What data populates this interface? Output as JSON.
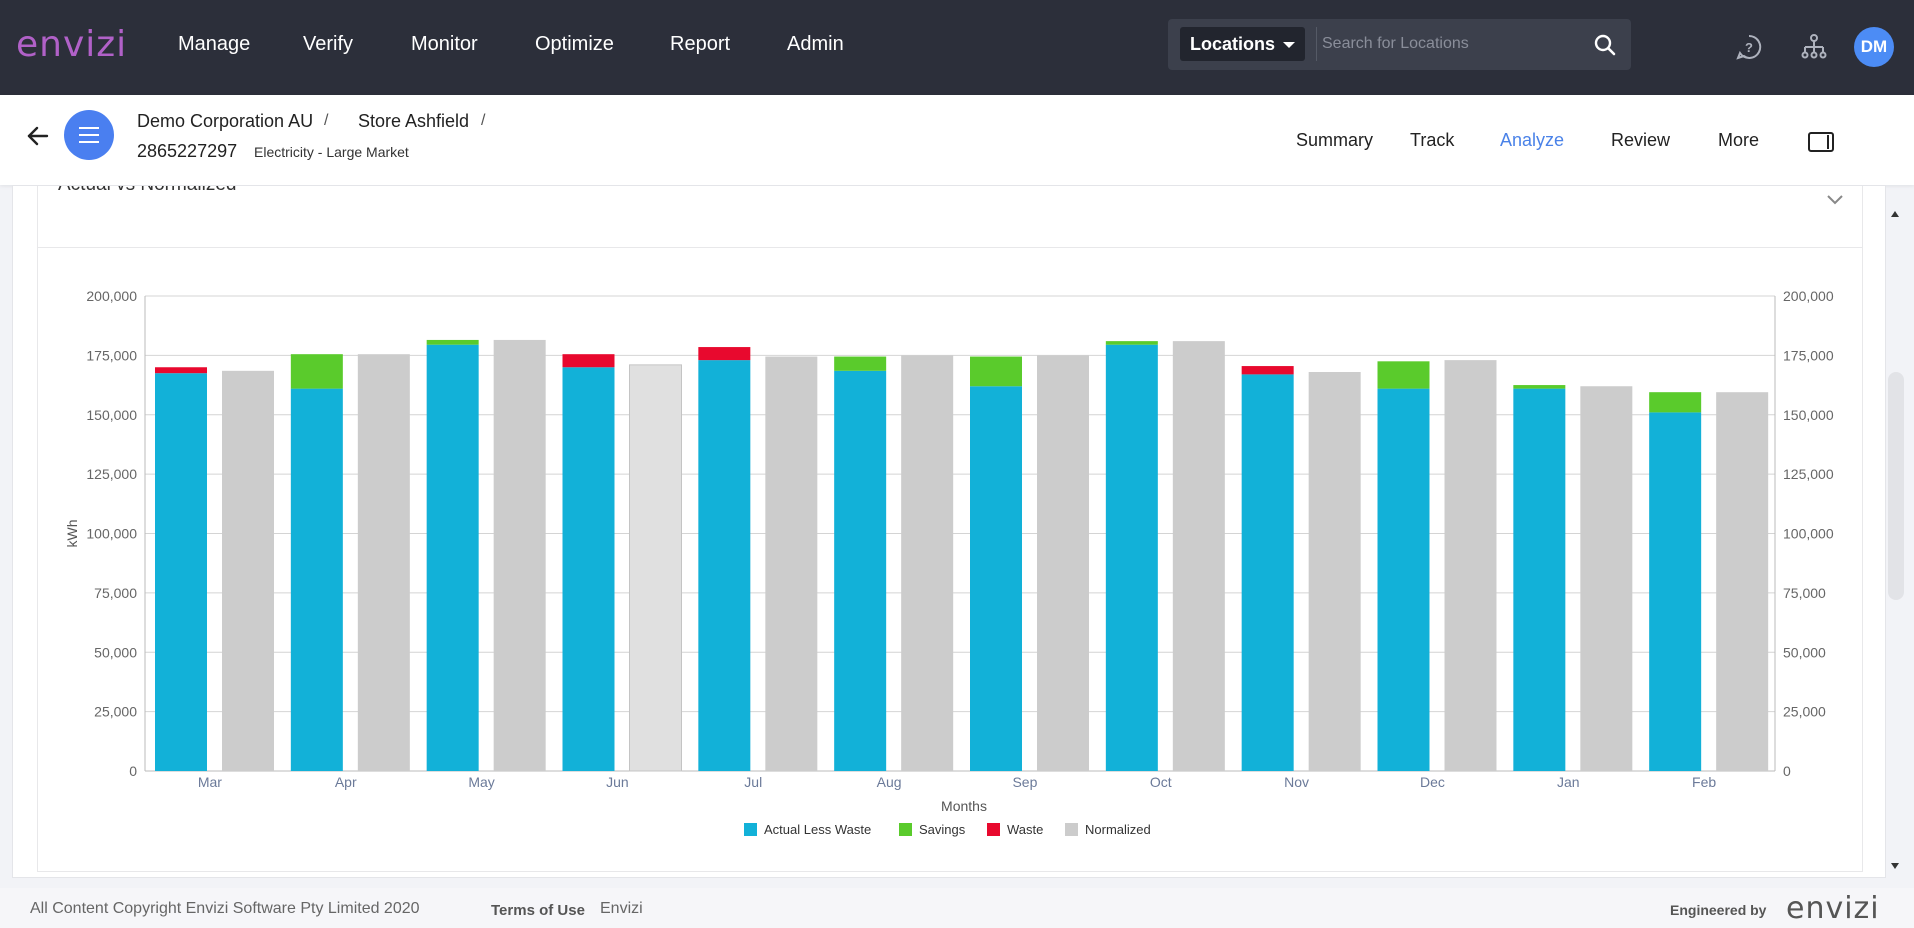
{
  "app": {
    "logo": "envizi",
    "nav": [
      "Manage",
      "Verify",
      "Monitor",
      "Optimize",
      "Report",
      "Admin"
    ],
    "search": {
      "scope": "Locations",
      "placeholder": "Search for Locations"
    },
    "user_initials": "DM"
  },
  "subheader": {
    "breadcrumb": [
      "Demo Corporation AU",
      "Store Ashfield"
    ],
    "separator": "/",
    "meter_id": "2865227297",
    "meter_type": "Electricity - Large Market",
    "tabs": [
      "Summary",
      "Track",
      "Analyze",
      "Review",
      "More"
    ],
    "active_tab": "Analyze"
  },
  "card": {
    "title": "Actual vs Normalized"
  },
  "chart_data": {
    "type": "bar",
    "title": "",
    "xlabel": "Months",
    "ylabel": "kWh",
    "ylim": [
      0,
      200000
    ],
    "yticks": [
      "0",
      "25,000",
      "50,000",
      "75,000",
      "100,000",
      "125,000",
      "150,000",
      "175,000",
      "200,000"
    ],
    "categories": [
      "Mar",
      "Apr",
      "May",
      "Jun",
      "Jul",
      "Aug",
      "Sep",
      "Oct",
      "Nov",
      "Dec",
      "Jan",
      "Feb"
    ],
    "series": [
      {
        "name": "Actual Less Waste",
        "color": "#12b1d8",
        "stack": "actual",
        "values": [
          167500,
          161000,
          179500,
          170000,
          173000,
          168500,
          162000,
          179500,
          167000,
          161000,
          161000,
          151000
        ]
      },
      {
        "name": "Savings",
        "color": "#5acb2c",
        "stack": "actual",
        "values": [
          0,
          14500,
          2000,
          0,
          0,
          6000,
          12500,
          1500,
          0,
          11500,
          1500,
          8500
        ]
      },
      {
        "name": "Waste",
        "color": "#e8092e",
        "stack": "actual",
        "values": [
          2500,
          0,
          0,
          5500,
          5500,
          0,
          0,
          0,
          3500,
          0,
          0,
          0
        ]
      },
      {
        "name": "Normalized",
        "color": "#cccccc",
        "stack": "normalized",
        "values": [
          168500,
          175500,
          181500,
          171000,
          174500,
          175000,
          175000,
          181000,
          168000,
          173000,
          162000,
          159500
        ]
      }
    ],
    "highlighted_category": "Jun",
    "legend_position": "bottom-center",
    "grid": true,
    "secondary_axis": true
  },
  "footer": {
    "copyright": "All Content Copyright Envizi Software Pty Limited 2020",
    "terms": "Terms of Use",
    "brand": "Envizi",
    "engineered_by": "Engineered by",
    "logo": "envizi"
  }
}
